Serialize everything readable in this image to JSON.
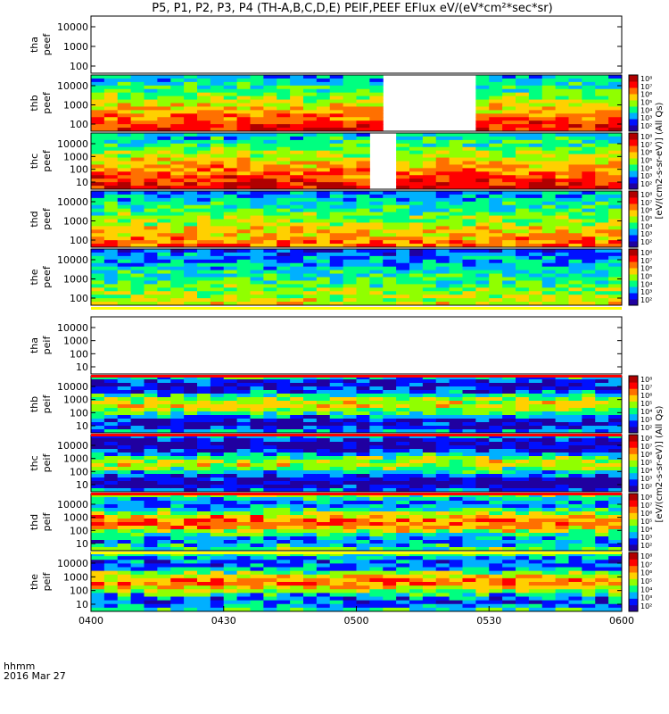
{
  "title": "P5, P1, P2, P3, P4 (TH-A,B,C,D,E) PEIF,PEEF EFlux eV/(eV*cm²*sec*sr)",
  "footer": {
    "line1": "hhmm",
    "line2": "2016 Mar 27"
  },
  "chart_data": {
    "type": "heatmap",
    "x_ticks": [
      "0400",
      "0430",
      "0500",
      "0530",
      "0600"
    ],
    "colorbar_ticks": [
      "10²",
      "10³",
      "10⁴",
      "10⁵",
      "10⁶",
      "10⁷",
      "10⁸"
    ],
    "colorbar_label_electron": "[eV/(cm2-s-sr-eV)] (All Qs)",
    "colorbar_label_ion": "[eV/(cm2-s-sr-eV)] (All Qs)",
    "colors": {
      "scale": [
        "#2000a0",
        "#0010ff",
        "#00b0ff",
        "#00ff80",
        "#90ff00",
        "#ffd000",
        "#ff7000",
        "#ff0000",
        "#b00000"
      ],
      "missing": "#ffffff"
    },
    "panels": [
      {
        "probe": "tha",
        "product": "peef",
        "line1": "tha",
        "line2": "peef",
        "y_ticks": [
          "10000",
          "1000",
          "100"
        ],
        "has_data": false,
        "base": 0,
        "gaps": []
      },
      {
        "probe": "thb",
        "product": "peef",
        "line1": "thb",
        "line2": "peef",
        "y_ticks": [
          "10000",
          "1000",
          "100"
        ],
        "has_data": true,
        "base": 0.8,
        "gaps": [
          [
            0.553,
            0.714
          ]
        ]
      },
      {
        "probe": "thc",
        "product": "peef",
        "line1": "thc",
        "line2": "peef",
        "y_ticks": [
          "10000",
          "1000",
          "100",
          "10"
        ],
        "has_data": true,
        "base": 0.85,
        "gaps": [
          [
            0.514,
            0.564
          ]
        ]
      },
      {
        "probe": "thd",
        "product": "peef",
        "line1": "thd",
        "line2": "peef",
        "y_ticks": [
          "10000",
          "1000",
          "100"
        ],
        "has_data": true,
        "base": 0.7,
        "gaps": []
      },
      {
        "probe": "the",
        "product": "peef",
        "line1": "the",
        "line2": "peef",
        "y_ticks": [
          "10000",
          "1000",
          "100"
        ],
        "has_data": true,
        "base": 0.55,
        "gaps": []
      },
      {
        "probe": "tha",
        "product": "peif",
        "line1": "tha",
        "line2": "peif",
        "y_ticks": [
          "10000",
          "1000",
          "100",
          "10"
        ],
        "has_data": false,
        "base": 0,
        "gaps": []
      },
      {
        "probe": "thb",
        "product": "peif",
        "line1": "thb",
        "line2": "peif",
        "y_ticks": [
          "10000",
          "1000",
          "100",
          "10"
        ],
        "has_data": true,
        "base": 0.35,
        "gaps": []
      },
      {
        "probe": "thc",
        "product": "peif",
        "line1": "thc",
        "line2": "peif",
        "y_ticks": [
          "10000",
          "1000",
          "100",
          "10"
        ],
        "has_data": true,
        "base": 0.3,
        "gaps": []
      },
      {
        "probe": "thd",
        "product": "peif",
        "line1": "thd",
        "line2": "peif",
        "y_ticks": [
          "10000",
          "1000",
          "100",
          "10"
        ],
        "has_data": true,
        "base": 0.5,
        "gaps": []
      },
      {
        "probe": "the",
        "product": "peif",
        "line1": "the",
        "line2": "peif",
        "y_ticks": [
          "10000",
          "1000",
          "100",
          "10"
        ],
        "has_data": true,
        "base": 0.45,
        "gaps": []
      }
    ]
  }
}
